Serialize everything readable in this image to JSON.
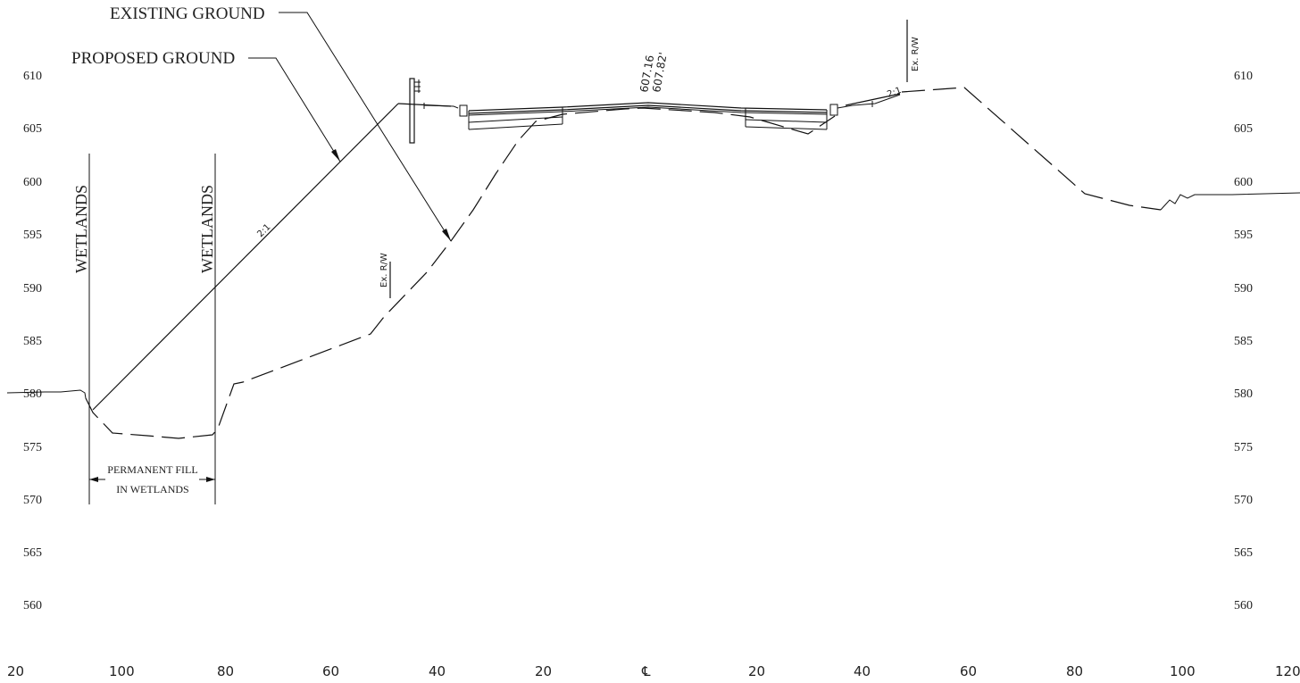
{
  "callouts": {
    "existing_ground": "EXISTING GROUND",
    "proposed_ground": "PROPOSED GROUND"
  },
  "labels": {
    "wetlands_left": "WETLANDS",
    "wetlands_right": "WETLANDS",
    "permanent_fill_line1": "PERMANENT FILL",
    "permanent_fill_line2": "IN WETLANDS",
    "slope_left": "2:1",
    "slope_right": "2:1",
    "row_left": "Ex. R/W",
    "row_right": "Ex. R/W",
    "grade_line1": "607.16",
    "grade_line2": "607.82'"
  },
  "elevations_left": [
    "610",
    "605",
    "600",
    "595",
    "590",
    "585",
    "580",
    "575",
    "570",
    "565",
    "560"
  ],
  "elevations_right": [
    "610",
    "605",
    "600",
    "595",
    "590",
    "585",
    "580",
    "575",
    "570",
    "565",
    "560"
  ],
  "stations": [
    "20",
    "100",
    "80",
    "60",
    "40",
    "20",
    "℄",
    "20",
    "40",
    "60",
    "80",
    "100",
    "120"
  ]
}
